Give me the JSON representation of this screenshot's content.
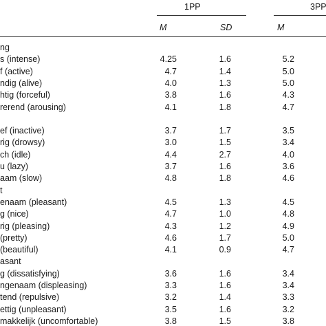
{
  "header": {
    "group1": "1PP",
    "group2": "3PP",
    "col_m": "M",
    "col_sd": "SD",
    "col_m2": "M"
  },
  "rows": [
    {
      "label": "ng",
      "m1": "",
      "sd1": "",
      "m2": ""
    },
    {
      "label": "s (intense)",
      "m1": "4.25",
      "sd1": "1.6",
      "m2": "5.2"
    },
    {
      "label": "f (active)",
      "m1": "4.7",
      "sd1": "1.4",
      "m2": "5.0"
    },
    {
      "label": "ndig (alive)",
      "m1": "4.0",
      "sd1": "1.3",
      "m2": "5.0"
    },
    {
      "label": "htig (forceful)",
      "m1": "3.8",
      "sd1": "1.6",
      "m2": "4.3"
    },
    {
      "label": "rerend (arousing)",
      "m1": "4.1",
      "sd1": "1.8",
      "m2": "4.7"
    },
    {
      "label": "",
      "m1": "",
      "sd1": "",
      "m2": ""
    },
    {
      "label": "ef (inactive)",
      "m1": "3.7",
      "sd1": "1.7",
      "m2": "3.5"
    },
    {
      "label": "rig (drowsy)",
      "m1": "3.0",
      "sd1": "1.5",
      "m2": "3.4"
    },
    {
      "label": "ch (idle)",
      "m1": "4.4",
      "sd1": "2.7",
      "m2": "4.0"
    },
    {
      "label": "u (lazy)",
      "m1": "3.7",
      "sd1": "1.6",
      "m2": "3.6"
    },
    {
      "label": "aam (slow)",
      "m1": "4.8",
      "sd1": "1.8",
      "m2": "4.6"
    },
    {
      "label": "t",
      "m1": "",
      "sd1": "",
      "m2": ""
    },
    {
      "label": "enaam (pleasant)",
      "m1": "4.5",
      "sd1": "1.3",
      "m2": "4.5"
    },
    {
      "label": "g (nice)",
      "m1": "4.7",
      "sd1": "1.0",
      "m2": "4.8"
    },
    {
      "label": "rig (pleasing)",
      "m1": "4.3",
      "sd1": "1.2",
      "m2": "4.9"
    },
    {
      "label": "(pretty)",
      "m1": "4.6",
      "sd1": "1.7",
      "m2": "5.0"
    },
    {
      "label": "(beautiful)",
      "m1": "4.1",
      "sd1": "0.9",
      "m2": "4.7"
    },
    {
      "label": "asant",
      "m1": "",
      "sd1": "",
      "m2": ""
    },
    {
      "label": "g (dissatisfying)",
      "m1": "3.6",
      "sd1": "1.6",
      "m2": "3.4"
    },
    {
      "label": "ngenaam (displeasing)",
      "m1": "3.3",
      "sd1": "1.6",
      "m2": "3.4"
    },
    {
      "label": "tend (repulsive)",
      "m1": "3.2",
      "sd1": "1.4",
      "m2": "3.3"
    },
    {
      "label": "ettig (unpleasant)",
      "m1": "3.5",
      "sd1": "1.6",
      "m2": "3.2"
    },
    {
      "label": "makkelijk (uncomfortable)",
      "m1": "3.8",
      "sd1": "1.5",
      "m2": "3.8"
    }
  ]
}
